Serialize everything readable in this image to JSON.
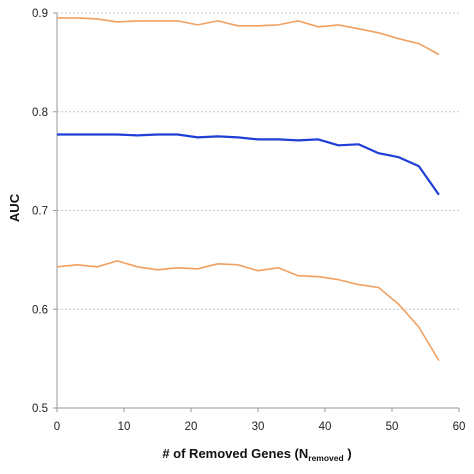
{
  "chart_data": {
    "type": "line",
    "xlabel": "# of Removed Genes (N",
    "xlabel_sub": "removed",
    "xlabel_end": " )",
    "ylabel": "AUC",
    "xlim": [
      0,
      60
    ],
    "ylim": [
      0.5,
      0.9
    ],
    "xticks": [
      0,
      10,
      20,
      30,
      40,
      50,
      60
    ],
    "yticks": [
      0.5,
      0.6,
      0.7,
      0.8,
      0.9
    ],
    "ytick_labels": [
      "0.5",
      "0.6",
      "0.7",
      "0.8",
      "0.9"
    ],
    "grid": "horizontal dotted",
    "x": [
      0,
      3,
      6,
      9,
      12,
      15,
      18,
      21,
      24,
      27,
      30,
      33,
      36,
      39,
      42,
      45,
      48,
      51,
      54,
      57
    ],
    "series": [
      {
        "color": "#f0a060",
        "values": [
          0.895,
          0.895,
          0.894,
          0.891,
          0.892,
          0.892,
          0.892,
          0.888,
          0.892,
          0.887,
          0.887,
          0.888,
          0.892,
          0.886,
          0.888,
          0.884,
          0.88,
          0.874,
          0.869,
          0.858
        ]
      },
      {
        "color": "#1f3fd6",
        "values": [
          0.777,
          0.777,
          0.777,
          0.777,
          0.776,
          0.777,
          0.777,
          0.774,
          0.775,
          0.774,
          0.772,
          0.772,
          0.771,
          0.772,
          0.766,
          0.767,
          0.758,
          0.754,
          0.745,
          0.716
        ]
      },
      {
        "color": "#f0a060",
        "values": [
          0.643,
          0.645,
          0.643,
          0.649,
          0.643,
          0.64,
          0.642,
          0.641,
          0.646,
          0.645,
          0.639,
          0.642,
          0.634,
          0.633,
          0.63,
          0.625,
          0.622,
          0.605,
          0.582,
          0.548
        ]
      }
    ]
  }
}
